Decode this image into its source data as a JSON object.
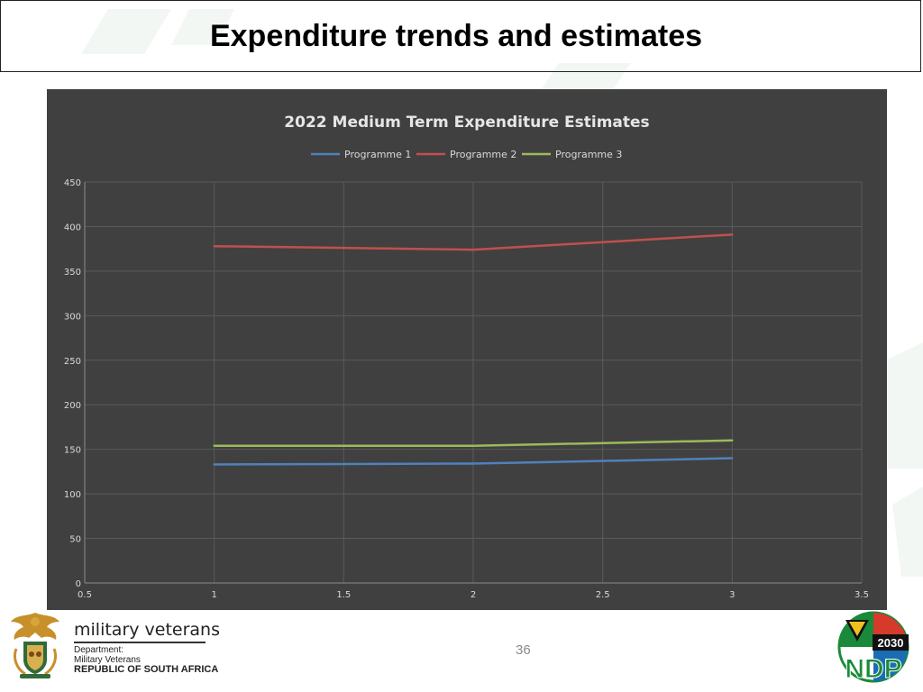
{
  "slide": {
    "title": "Expenditure trends and estimates",
    "page_number": "36"
  },
  "footer": {
    "org_name": "military veterans",
    "dept_line1": "Department:",
    "dept_line2": "Military Veterans",
    "dept_line3": "REPUBLIC OF SOUTH AFRICA",
    "ndp_year": "2030",
    "ndp_text": "NDP"
  },
  "colors": {
    "chart_bg": "#404040",
    "programme1": "#4f81bd",
    "programme2": "#c0504d",
    "programme3": "#9bbb59",
    "gridline": "#5a5a5a",
    "text": "#d9d9d9"
  },
  "chart_data": {
    "type": "line",
    "title": "2022 Medium Term Expenditure Estimates",
    "xlabel": "",
    "ylabel": "",
    "xlim": [
      0.5,
      3.5
    ],
    "ylim": [
      0,
      450
    ],
    "x_ticks": [
      "0.5",
      "1",
      "1.5",
      "2",
      "2.5",
      "3",
      "3.5"
    ],
    "y_ticks": [
      "0",
      "50",
      "100",
      "150",
      "200",
      "250",
      "300",
      "350",
      "400",
      "450"
    ],
    "grid": true,
    "legend_position": "top",
    "x": [
      1,
      2,
      3
    ],
    "series": [
      {
        "name": "Programme 1",
        "values": [
          133,
          134,
          140
        ]
      },
      {
        "name": "Programme 2",
        "values": [
          378,
          374,
          391
        ]
      },
      {
        "name": "Programme 3",
        "values": [
          154,
          154,
          160
        ]
      }
    ]
  }
}
